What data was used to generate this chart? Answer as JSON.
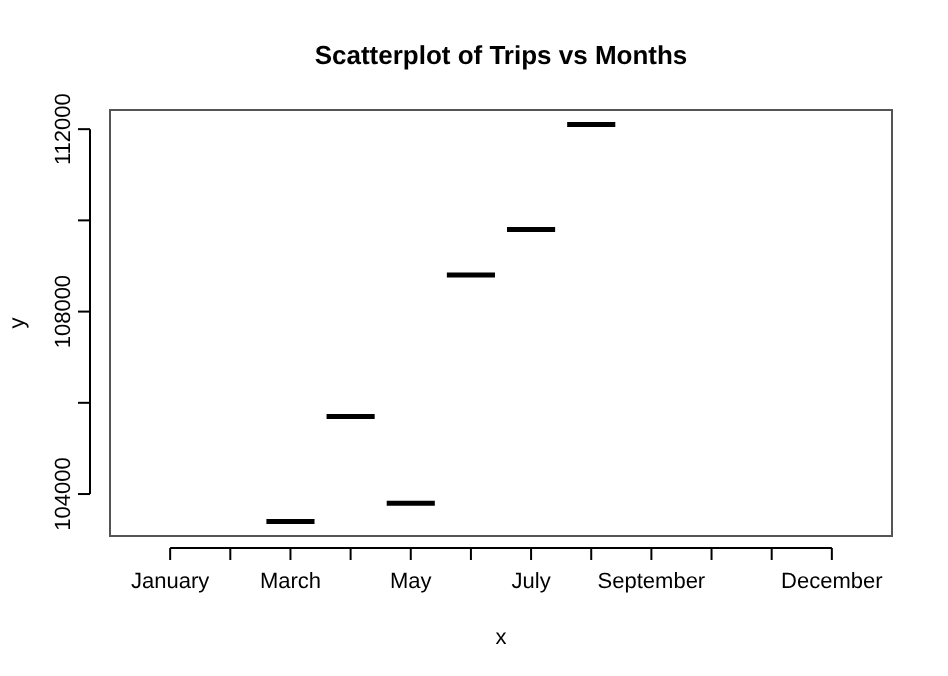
{
  "chart_data": {
    "type": "box",
    "title": "Scatterplot of  Trips vs Months",
    "xlabel": "x",
    "ylabel": "y",
    "categories": [
      "January",
      null,
      "March",
      null,
      "May",
      null,
      "July",
      null,
      "September",
      null,
      null,
      "December"
    ],
    "boxes": [
      null,
      null,
      {
        "low": 103400,
        "q1": 103400,
        "median": 103400,
        "q3": 103400,
        "high": 103400
      },
      {
        "low": 105700,
        "q1": 105700,
        "median": 105700,
        "q3": 105700,
        "high": 105700
      },
      {
        "low": 103800,
        "q1": 103800,
        "median": 103800,
        "q3": 103800,
        "high": 103800
      },
      {
        "low": 108800,
        "q1": 108800,
        "median": 108800,
        "q3": 108800,
        "high": 108800
      },
      {
        "low": 109800,
        "q1": 109800,
        "median": 109800,
        "q3": 109800,
        "high": 109800
      },
      {
        "low": 112100,
        "q1": 112100,
        "median": 112100,
        "q3": 112100,
        "high": 112100
      },
      null,
      null,
      null,
      null
    ],
    "ylim": [
      103080,
      112420
    ],
    "yticks": [
      104000,
      {
        "value": 106000,
        "label": null
      },
      108000,
      {
        "value": 110000,
        "label": null
      },
      112000
    ],
    "grid": false
  }
}
